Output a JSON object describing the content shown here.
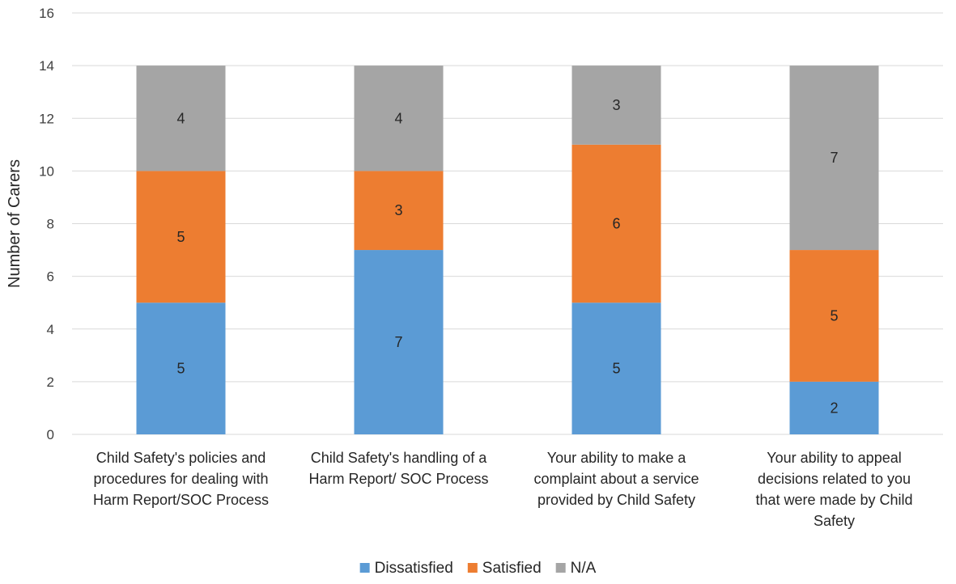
{
  "chart_data": {
    "type": "bar",
    "stacked": true,
    "title": "",
    "xlabel": "",
    "ylabel": "Number of Carers",
    "ylim": [
      0,
      16
    ],
    "yticks": [
      0,
      2,
      4,
      6,
      8,
      10,
      12,
      14,
      16
    ],
    "grid": "horizontal",
    "legend_position": "bottom",
    "categories": [
      [
        "Child Safety's policies and",
        "procedures for dealing with",
        "Harm Report/SOC Process"
      ],
      [
        "Child Safety's handling of a",
        "Harm Report/ SOC Process"
      ],
      [
        "Your ability to make a",
        "complaint about a service",
        "provided by Child Safety"
      ],
      [
        "Your ability to appeal",
        "decisions related to you",
        "that were made by Child",
        "Safety"
      ]
    ],
    "series": [
      {
        "name": "Dissatisfied",
        "color": "#5B9BD5",
        "values": [
          5,
          7,
          5,
          2
        ]
      },
      {
        "name": "Satisfied",
        "color": "#ED7D31",
        "values": [
          5,
          3,
          6,
          5
        ]
      },
      {
        "name": "N/A",
        "color": "#A5A5A5",
        "values": [
          4,
          4,
          3,
          7
        ]
      }
    ]
  }
}
